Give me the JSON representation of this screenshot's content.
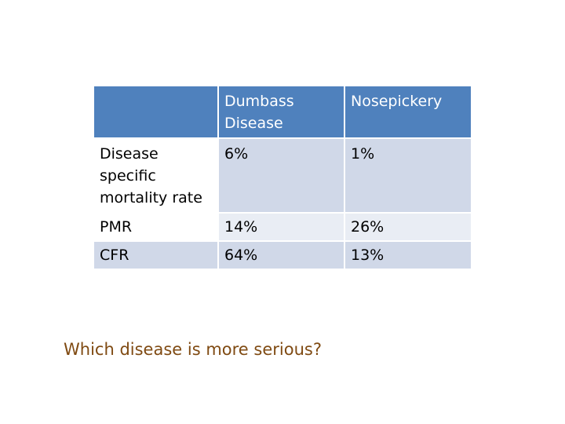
{
  "table": {
    "headers": [
      "",
      "Dumbass Disease",
      "Nosepickery"
    ],
    "rows": [
      {
        "label": "Disease specific mortality rate",
        "values": [
          "6%",
          "1%"
        ]
      },
      {
        "label": "PMR",
        "values": [
          "14%",
          "26%"
        ]
      },
      {
        "label": "CFR",
        "values": [
          "64%",
          "13%"
        ]
      }
    ]
  },
  "question": "Which disease is more serious?",
  "colors": {
    "header_bg": "#4f81bd",
    "row_band_dark": "#d0d8e8",
    "row_band_light": "#e9edf4",
    "question_text": "#7f4a12"
  }
}
